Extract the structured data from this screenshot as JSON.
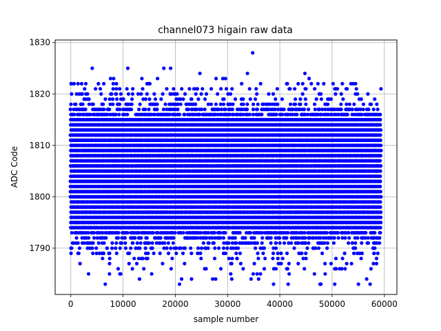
{
  "chart_data": {
    "type": "scatter",
    "title": "channel073 higain raw data",
    "xlabel": "sample number",
    "ylabel": "ADC Code",
    "xlim": [
      -3000,
      62400
    ],
    "ylim": [
      1781,
      1830.5
    ],
    "x_ticks": [
      0,
      10000,
      20000,
      30000,
      40000,
      50000,
      60000
    ],
    "y_ticks": [
      1790,
      1800,
      1810,
      1820,
      1830
    ],
    "grid": true,
    "marker_color": "#0000ff",
    "x_range": [
      0,
      59300
    ],
    "dense_band": [
      1794,
      1815
    ],
    "outliers": [
      {
        "x": 4100,
        "y": 1825
      },
      {
        "x": 10900,
        "y": 1825
      },
      {
        "x": 17800,
        "y": 1825
      },
      {
        "x": 19100,
        "y": 1825
      },
      {
        "x": 24700,
        "y": 1824
      },
      {
        "x": 33800,
        "y": 1824
      },
      {
        "x": 34800,
        "y": 1828
      },
      {
        "x": 44800,
        "y": 1824
      },
      {
        "x": 7600,
        "y": 1823
      },
      {
        "x": 8200,
        "y": 1823
      },
      {
        "x": 13600,
        "y": 1823
      },
      {
        "x": 16600,
        "y": 1823
      },
      {
        "x": 27800,
        "y": 1823
      },
      {
        "x": 29100,
        "y": 1823
      },
      {
        "x": 29600,
        "y": 1823
      },
      {
        "x": 45600,
        "y": 1823
      },
      {
        "x": 3400,
        "y": 1785
      },
      {
        "x": 7400,
        "y": 1785
      },
      {
        "x": 9400,
        "y": 1785
      },
      {
        "x": 20800,
        "y": 1783
      },
      {
        "x": 21200,
        "y": 1784
      },
      {
        "x": 23100,
        "y": 1784
      },
      {
        "x": 30600,
        "y": 1785
      },
      {
        "x": 30800,
        "y": 1784
      },
      {
        "x": 34500,
        "y": 1784
      },
      {
        "x": 38800,
        "y": 1783
      },
      {
        "x": 41600,
        "y": 1783
      },
      {
        "x": 47700,
        "y": 1783
      },
      {
        "x": 50500,
        "y": 1783
      }
    ]
  }
}
